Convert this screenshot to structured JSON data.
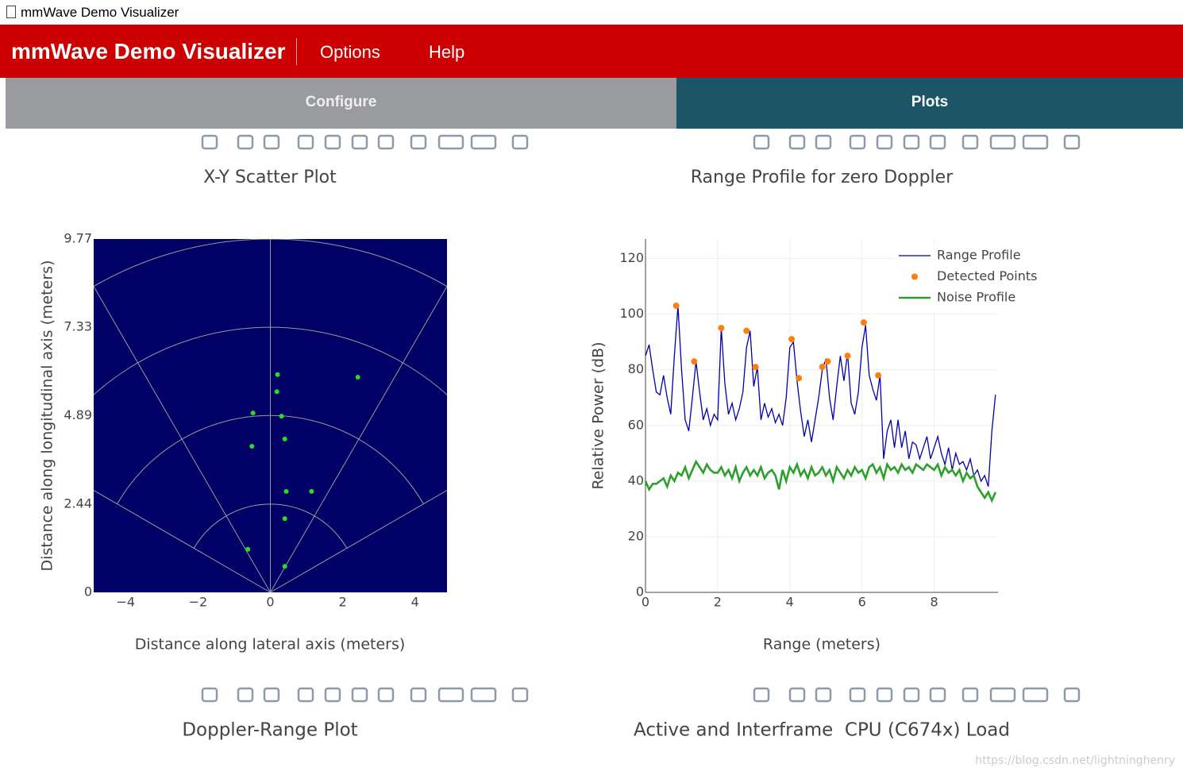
{
  "window_title": "mmWave Demo Visualizer",
  "header": {
    "brand": "mmWave Demo Visualizer",
    "menu": [
      "Options",
      "Help"
    ]
  },
  "tabs": [
    "Configure",
    "Plots"
  ],
  "panels": [
    "Doppler-Range Plot",
    "Active and Interframe  CPU (C674x) Load"
  ],
  "watermark": "https://blog.csdn.net/lightninghenry",
  "chart_data": [
    {
      "type": "scatter",
      "title": "X-Y Scatter Plot",
      "x_label": "Distance along lateral axis (meters)",
      "y_label": "Distance along longitudinal axis (meters)",
      "background": "#000066",
      "polar_grid": true,
      "color": "#22e022",
      "x": [
        0.2,
        0.18,
        2.42,
        -0.48,
        0.31,
        0.4,
        -0.51,
        0.44,
        1.14,
        0.4,
        -0.62,
        0.4
      ],
      "values": [
        6.02,
        5.55,
        5.95,
        4.96,
        4.87,
        4.24,
        4.04,
        2.79,
        2.79,
        2.04,
        1.19,
        0.72
      ],
      "xlim": [
        -4.885,
        4.885
      ],
      "xticks": [
        {
          "value": -4,
          "label": "−4"
        },
        {
          "value": -2,
          "label": "−2"
        },
        0,
        2,
        4
      ],
      "ylim": [
        0,
        9.77
      ],
      "yticks": [
        0,
        2.44,
        4.89,
        7.33,
        9.77
      ]
    },
    {
      "type": "line",
      "title": "Range Profile for zero Doppler",
      "x_label": "Range (meters)",
      "y_label": "Relative Power (dB)",
      "grid": true,
      "legend": "top-right",
      "x": [
        0.0,
        0.1,
        0.2,
        0.3,
        0.4,
        0.5,
        0.6,
        0.7,
        0.8,
        0.9,
        1.0,
        1.1,
        1.2,
        1.3,
        1.4,
        1.5,
        1.6,
        1.7,
        1.8,
        1.9,
        2.0,
        2.1,
        2.2,
        2.3,
        2.4,
        2.5,
        2.6,
        2.7,
        2.8,
        2.9,
        3.0,
        3.1,
        3.2,
        3.3,
        3.4,
        3.5,
        3.6,
        3.7,
        3.8,
        3.9,
        4.0,
        4.1,
        4.2,
        4.3,
        4.4,
        4.5,
        4.6,
        4.7,
        4.8,
        4.9,
        5.0,
        5.1,
        5.2,
        5.3,
        5.4,
        5.5,
        5.6,
        5.7,
        5.8,
        5.9,
        6.0,
        6.1,
        6.2,
        6.3,
        6.4,
        6.5,
        6.6,
        6.7,
        6.8,
        6.9,
        7.0,
        7.1,
        7.2,
        7.3,
        7.4,
        7.5,
        7.6,
        7.7,
        7.8,
        7.9,
        8.0,
        8.1,
        8.2,
        8.3,
        8.4,
        8.5,
        8.6,
        8.7,
        8.8,
        8.9,
        9.0,
        9.1,
        9.2,
        9.3,
        9.4,
        9.5,
        9.6,
        9.7
      ],
      "series": [
        {
          "name": "Range Profile",
          "color": "#0000aa",
          "width": 1.3,
          "values": [
            85,
            89,
            80,
            72,
            71,
            78,
            70,
            64,
            85,
            103,
            80,
            62,
            58,
            70,
            83,
            72,
            62,
            66,
            60,
            64,
            62,
            95,
            75,
            64,
            68,
            62,
            66,
            72,
            88,
            94,
            74,
            81,
            62,
            68,
            63,
            66,
            61,
            64,
            60,
            70,
            88,
            90,
            76,
            65,
            56,
            62,
            54,
            62,
            70,
            80,
            84,
            70,
            62,
            74,
            85,
            76,
            86,
            68,
            64,
            72,
            88,
            96,
            78,
            73,
            69,
            78,
            48,
            58,
            62,
            52,
            62,
            52,
            58,
            48,
            54,
            53,
            48,
            52,
            56,
            48,
            52,
            56,
            50,
            46,
            52,
            44,
            50,
            46,
            47,
            44,
            48,
            42,
            44,
            40,
            42,
            38,
            58,
            71
          ]
        },
        {
          "name": "Detected Points",
          "color": "#ff7f0e",
          "mode": "markers",
          "x": [
            0.85,
            1.35,
            2.1,
            2.8,
            3.05,
            4.05,
            4.25,
            4.9,
            5.05,
            5.6,
            6.05,
            6.45
          ],
          "values": [
            103,
            83,
            95,
            94,
            81,
            91,
            77,
            81,
            83,
            85,
            97,
            78
          ]
        },
        {
          "name": "Noise Profile",
          "color": "#2ca02c",
          "width": 2.6,
          "values": [
            40,
            37,
            39,
            39,
            40,
            41,
            38,
            42,
            40,
            43,
            42,
            45,
            41,
            44,
            47,
            45,
            43,
            46,
            44,
            43,
            43,
            45,
            42,
            44,
            41,
            45,
            40,
            43,
            45,
            42,
            44,
            42,
            45,
            41,
            43,
            44,
            42,
            37,
            44,
            40,
            45,
            43,
            46,
            42,
            44,
            41,
            45,
            42,
            43,
            45,
            42,
            44,
            40,
            45,
            43,
            41,
            44,
            42,
            45,
            43,
            44,
            41,
            45,
            46,
            43,
            45,
            41,
            46,
            44,
            45,
            43,
            46,
            44,
            45,
            43,
            46,
            45,
            44,
            46,
            45,
            44,
            46,
            42,
            45,
            43,
            44,
            42,
            44,
            40,
            43,
            41,
            42,
            38,
            36,
            34,
            36,
            33,
            36
          ]
        }
      ],
      "xlim": [
        0,
        9.77
      ],
      "xticks": [
        0,
        2,
        4,
        6,
        8
      ],
      "ylim": [
        0,
        127
      ],
      "yticks": [
        0,
        20,
        40,
        60,
        80,
        100,
        120
      ]
    }
  ]
}
